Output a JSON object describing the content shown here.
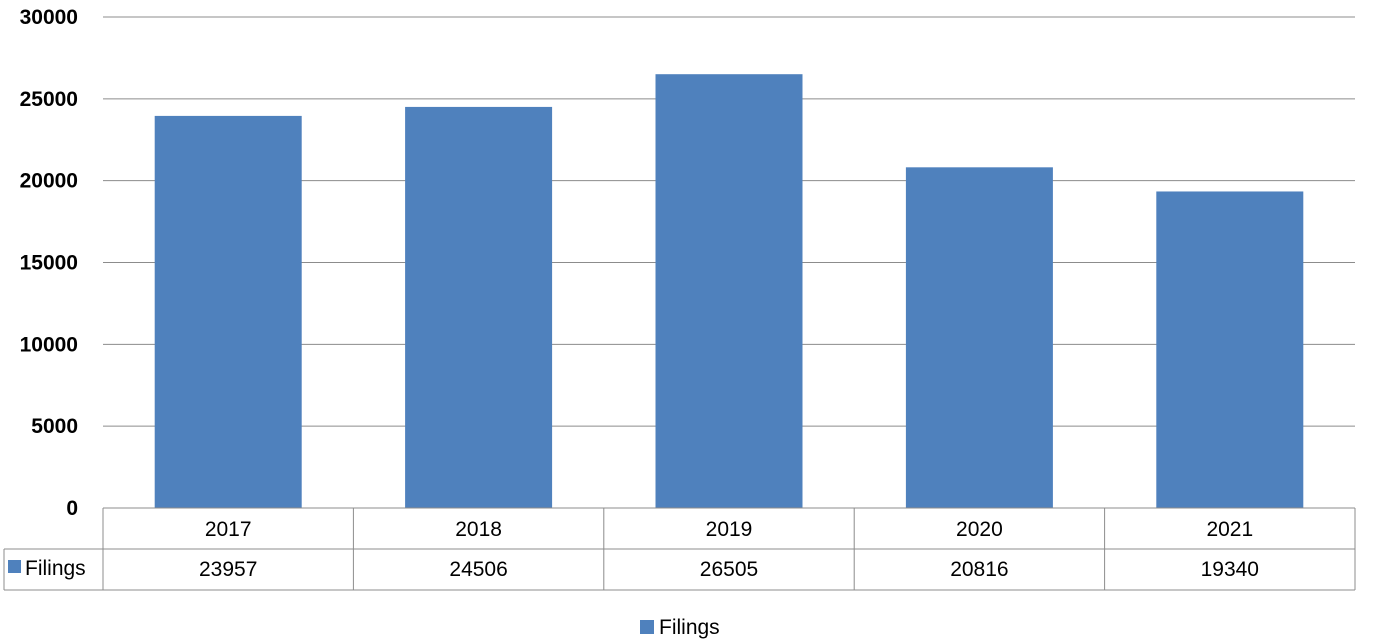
{
  "chart_data": {
    "type": "bar",
    "categories": [
      "2017",
      "2018",
      "2019",
      "2020",
      "2021"
    ],
    "series": [
      {
        "name": "Filings",
        "values": [
          23957,
          24506,
          26505,
          20816,
          19340
        ]
      }
    ],
    "ylim": [
      0,
      30000
    ],
    "yticks": [
      "0",
      "5000",
      "10000",
      "15000",
      "20000",
      "25000",
      "30000"
    ],
    "grid": true,
    "data_table": true,
    "legend": {
      "position": "bottom",
      "label": "Filings"
    },
    "bar_color": "#4f81bd"
  }
}
